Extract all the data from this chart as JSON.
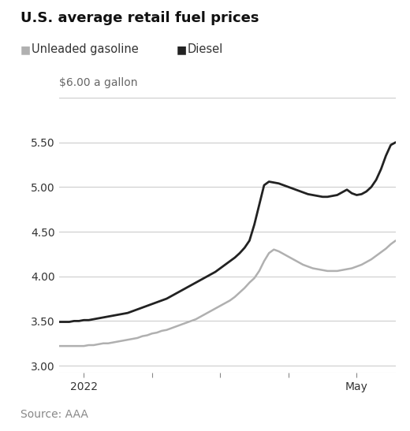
{
  "title": "U.S. average retail fuel prices",
  "ylabel_top": "$6.00 a gallon",
  "source": "Source: AAA",
  "legend_gasoline": "Unleaded gasoline",
  "legend_diesel": "Diesel",
  "gasoline_color": "#b0b0b0",
  "diesel_color": "#222222",
  "background_color": "#ffffff",
  "grid_color": "#cccccc",
  "text_color": "#333333",
  "source_color": "#888888",
  "label_color": "#666666",
  "ylim": [
    2.92,
    6.08
  ],
  "yticks": [
    3.0,
    3.5,
    4.0,
    4.5,
    5.0,
    5.5
  ],
  "ytop_line": 6.0,
  "title_fontsize": 13,
  "legend_fontsize": 10.5,
  "tick_fontsize": 10,
  "ylabel_top_fontsize": 10,
  "source_fontsize": 10,
  "gasoline_data": [
    3.22,
    3.22,
    3.22,
    3.22,
    3.22,
    3.22,
    3.23,
    3.23,
    3.24,
    3.25,
    3.25,
    3.26,
    3.27,
    3.28,
    3.29,
    3.3,
    3.31,
    3.33,
    3.34,
    3.36,
    3.37,
    3.39,
    3.4,
    3.42,
    3.44,
    3.46,
    3.48,
    3.5,
    3.52,
    3.55,
    3.58,
    3.61,
    3.64,
    3.67,
    3.7,
    3.73,
    3.77,
    3.82,
    3.87,
    3.93,
    3.98,
    4.06,
    4.17,
    4.26,
    4.3,
    4.28,
    4.25,
    4.22,
    4.19,
    4.16,
    4.13,
    4.11,
    4.09,
    4.08,
    4.07,
    4.06,
    4.06,
    4.06,
    4.07,
    4.08,
    4.09,
    4.11,
    4.13,
    4.16,
    4.19,
    4.23,
    4.27,
    4.31,
    4.36,
    4.4
  ],
  "diesel_data": [
    3.49,
    3.49,
    3.49,
    3.5,
    3.5,
    3.51,
    3.51,
    3.52,
    3.53,
    3.54,
    3.55,
    3.56,
    3.57,
    3.58,
    3.59,
    3.61,
    3.63,
    3.65,
    3.67,
    3.69,
    3.71,
    3.73,
    3.75,
    3.78,
    3.81,
    3.84,
    3.87,
    3.9,
    3.93,
    3.96,
    3.99,
    4.02,
    4.05,
    4.09,
    4.13,
    4.17,
    4.21,
    4.26,
    4.32,
    4.4,
    4.58,
    4.8,
    5.02,
    5.06,
    5.05,
    5.04,
    5.02,
    5.0,
    4.98,
    4.96,
    4.94,
    4.92,
    4.91,
    4.9,
    4.89,
    4.89,
    4.9,
    4.91,
    4.94,
    4.97,
    4.93,
    4.91,
    4.92,
    4.95,
    5.0,
    5.08,
    5.2,
    5.35,
    5.47,
    5.5
  ],
  "n_points": 70,
  "xtick_positions": [
    5,
    19,
    33,
    47,
    61
  ],
  "xtick_labels": [
    "2022",
    "",
    "",
    "",
    "May"
  ]
}
